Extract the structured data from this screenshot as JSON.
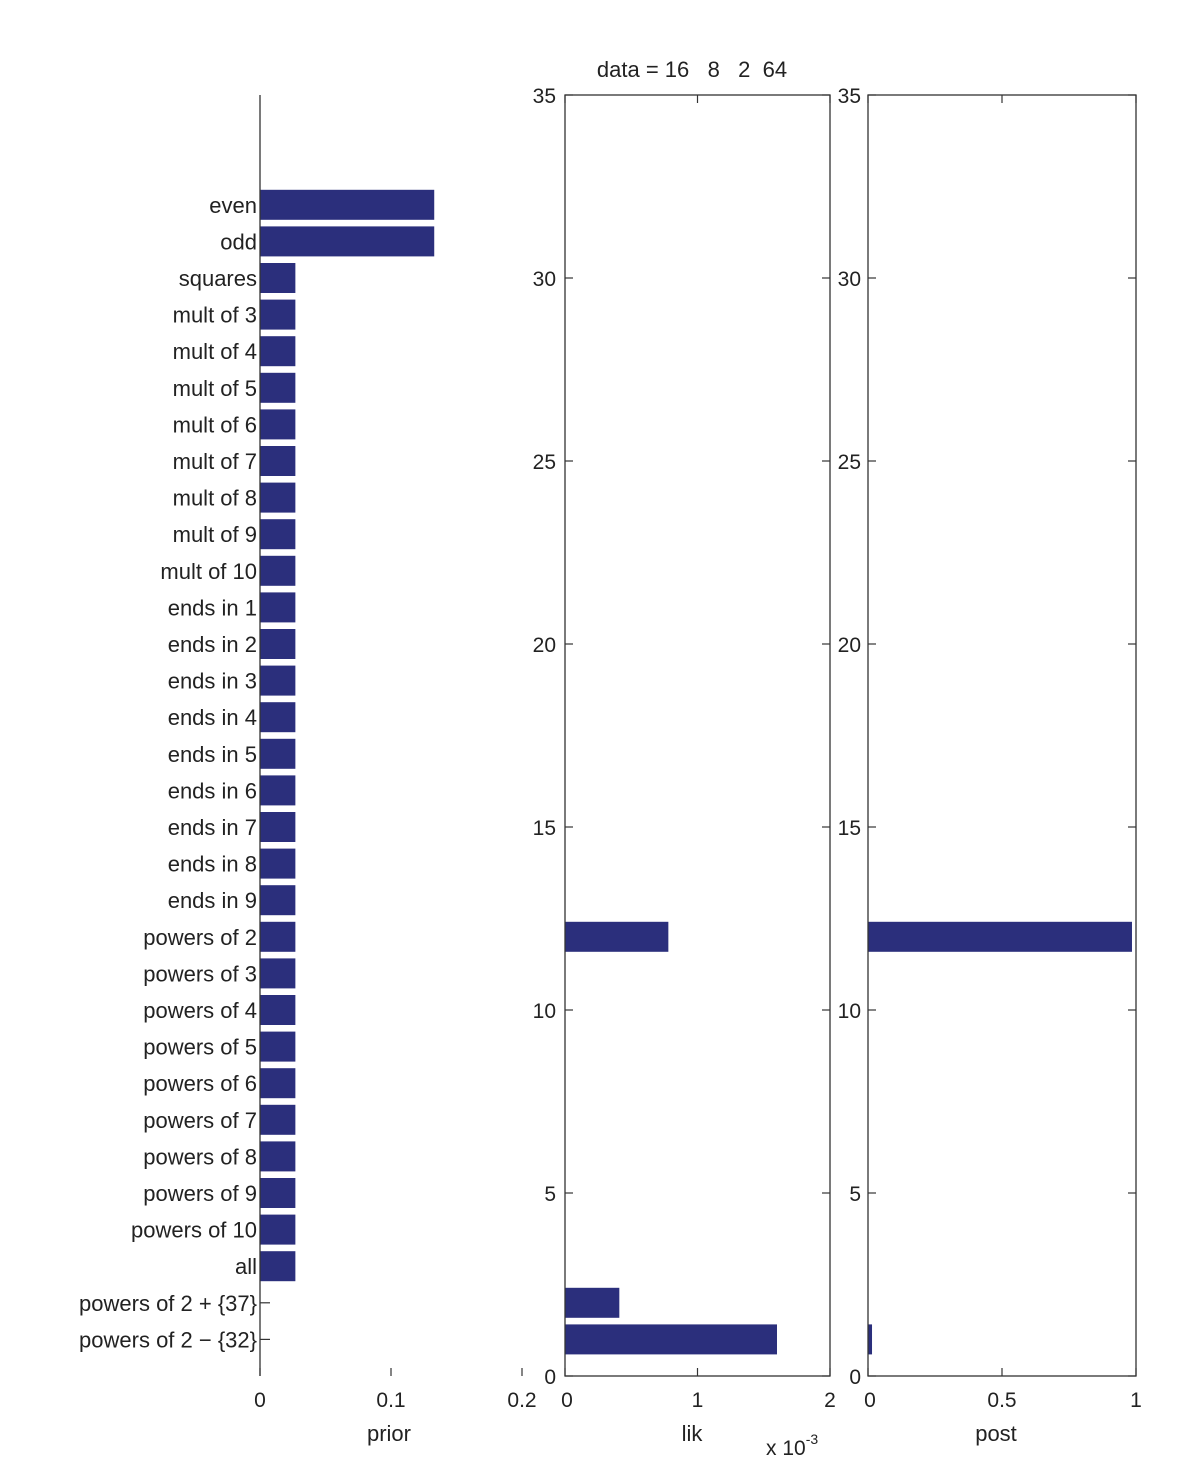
{
  "chart_data": [
    {
      "panel": "prior",
      "type": "bar",
      "orientation": "horizontal",
      "title": "",
      "xlabel": "prior",
      "ylabel": "",
      "xlim": [
        0,
        0.2
      ],
      "xticks": [
        "0",
        "0.1",
        "0.2"
      ],
      "categories": [
        "even",
        "odd",
        "squares",
        "mult of 3",
        "mult of 4",
        "mult of 5",
        "mult of 6",
        "mult of 7",
        "mult of 8",
        "mult of 9",
        "mult of 10",
        "ends in 1",
        "ends in 2",
        "ends in 3",
        "ends in 4",
        "ends in 5",
        "ends in 6",
        "ends in 7",
        "ends in 8",
        "ends in 9",
        "powers of 2",
        "powers of 3",
        "powers of 4",
        "powers of 5",
        "powers of 6",
        "powers of 7",
        "powers of 8",
        "powers of 9",
        "powers of 10",
        "all",
        "powers of 2 + {37}",
        "powers of 2 − {32}"
      ],
      "values": [
        0.133,
        0.133,
        0.027,
        0.027,
        0.027,
        0.027,
        0.027,
        0.027,
        0.027,
        0.027,
        0.027,
        0.027,
        0.027,
        0.027,
        0.027,
        0.027,
        0.027,
        0.027,
        0.027,
        0.027,
        0.027,
        0.027,
        0.027,
        0.027,
        0.027,
        0.027,
        0.027,
        0.027,
        0.027,
        0.027,
        0.0,
        0.0
      ],
      "grid": false
    },
    {
      "panel": "lik",
      "type": "bar",
      "orientation": "horizontal",
      "title": "data = 16   8   2  64",
      "xlabel": "lik",
      "x_exponent_label": "x 10",
      "x_exponent": "-3",
      "xlim": [
        0,
        2
      ],
      "xticks": [
        "0",
        "1",
        "2"
      ],
      "ylim": [
        0,
        35
      ],
      "yticks": [
        "0",
        "5",
        "10",
        "15",
        "20",
        "25",
        "30",
        "35"
      ],
      "bars": [
        {
          "y": 1,
          "value": 1.6
        },
        {
          "y": 2,
          "value": 0.41
        },
        {
          "y": 12,
          "value": 0.78
        }
      ],
      "grid": false
    },
    {
      "panel": "post",
      "type": "bar",
      "orientation": "horizontal",
      "title": "",
      "xlabel": "post",
      "xlim": [
        0,
        1
      ],
      "xticks": [
        "0",
        "0.5",
        "1"
      ],
      "ylim": [
        0,
        35
      ],
      "yticks": [
        "0",
        "5",
        "10",
        "15",
        "20",
        "25",
        "30",
        "35"
      ],
      "bars": [
        {
          "y": 1,
          "value": 0.015
        },
        {
          "y": 12,
          "value": 0.985
        }
      ],
      "grid": false
    }
  ],
  "colors": {
    "bar": "#2b2f7c",
    "axis": "#333333"
  }
}
